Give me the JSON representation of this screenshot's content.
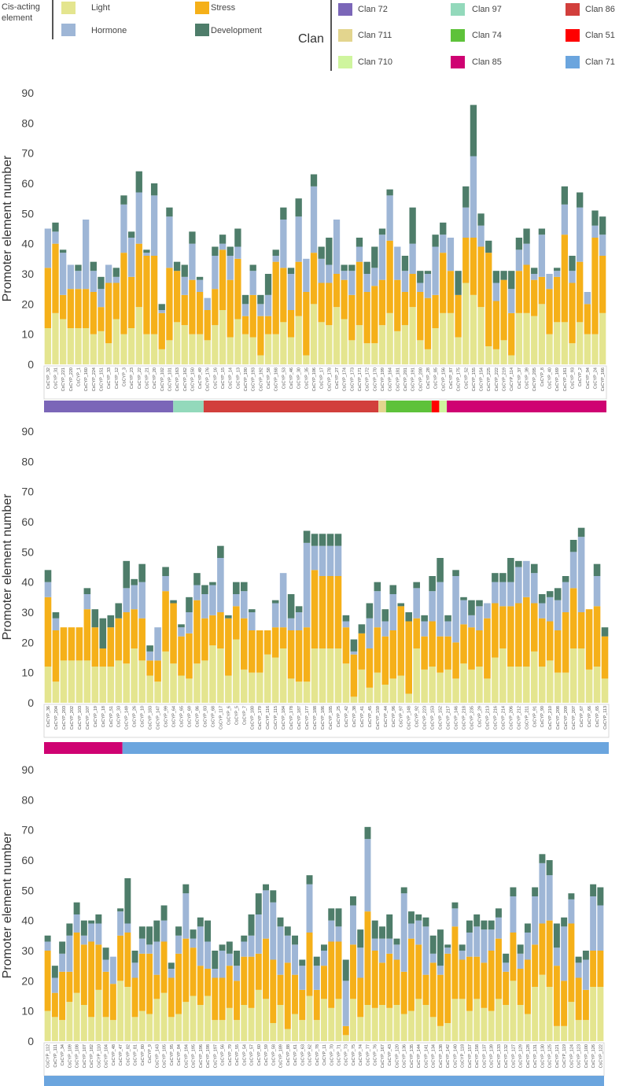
{
  "legend": {
    "cis_title_1": "Cis-acting",
    "cis_title_2": "element",
    "categories": [
      {
        "key": "light",
        "label": "Light",
        "color": "#E4E58F"
      },
      {
        "key": "stress",
        "label": "Stress",
        "color": "#F5B019"
      },
      {
        "key": "hormone",
        "label": "Hormone",
        "color": "#9EB6D6"
      },
      {
        "key": "development",
        "label": "Development",
        "color": "#4E7D6A"
      }
    ],
    "clan_title": "Clan",
    "clans": [
      {
        "label": "Clan 72",
        "color": "#7B66B8"
      },
      {
        "label": "Clan 97",
        "color": "#93D9BB"
      },
      {
        "label": "Clan 86",
        "color": "#D23F3C"
      },
      {
        "label": "Clan 711",
        "color": "#E3D58E"
      },
      {
        "label": "Clan 74",
        "color": "#5EC23A"
      },
      {
        "label": "Clan 51",
        "color": "#FF0000"
      },
      {
        "label": "Clan 710",
        "color": "#CFF59E"
      },
      {
        "label": "Clan 85",
        "color": "#CF0272"
      },
      {
        "label": "Clan 71",
        "color": "#6BA5DE"
      }
    ]
  },
  "chart_data": [
    {
      "type": "bar",
      "stacked": true,
      "ylabel": "Promoter element number",
      "ylim": [
        0,
        90
      ],
      "yticks": [
        0,
        10,
        20,
        30,
        40,
        50,
        60,
        70,
        80,
        90
      ],
      "series_names": [
        "Light",
        "Stress",
        "Hormone",
        "Development"
      ],
      "categories": [
        "CsCYP_32",
        "CsCYP_31",
        "CsCYP_221",
        "CsCYP_220",
        "CsCYP_1",
        "CsCYP_160",
        "CsCYP_224",
        "CsCYP_151",
        "CsCYP_33",
        "CsCYP_12",
        "CsCYP_3",
        "CsCYP_23",
        "CsCYP_22",
        "CsCYP_21",
        "CsCYP_20",
        "CsCYP_102",
        "CsCYP_101",
        "CsCYP_163",
        "CsCYP_162",
        "CsCYP_150",
        "CsCYP_49",
        "CsCYP_176",
        "CsCYP_16",
        "CsCYP_15",
        "CsCYP_14",
        "CsCYP_13",
        "CsCYP_190",
        "CsCYP_193",
        "CsCYP_192",
        "CsCYP_58",
        "CsCYP_168",
        "CsCYP_53",
        "CsCYP_46",
        "CsCYP_30",
        "CsCYP_35",
        "CsCYP_106",
        "CsCYP_17",
        "CsCYP_178",
        "CsCYP_27",
        "CsCYP_174",
        "CsCYP_173",
        "CsCYP_171",
        "CsCYP_172",
        "CsCYP_170",
        "CsCYP_199",
        "CsCYP_164",
        "CsCYP_181",
        "CsCYP_201",
        "CsCYP_191",
        "CsCYP_200",
        "CsCYP_28",
        "CsCYP_85",
        "CsCYP_156",
        "CsCYP_87",
        "CsCYP_175",
        "CsCYP_52",
        "CsCYP_155",
        "CsCYP_154",
        "CsCYP_225",
        "CsCYP_222",
        "CsCYP_219",
        "CsCYP_114",
        "CsCYP_37",
        "CsCYP_39",
        "CsCYP_205",
        "CsCYP_8",
        "CsCYP_40",
        "CsCYP_169",
        "CsCYP_161",
        "CsCYP_93",
        "CsCYP_2",
        "CsCYP_94",
        "CsCYP_24",
        "CsCYP_166"
      ],
      "light": [
        12,
        17,
        15,
        12,
        12,
        12,
        10,
        11,
        7,
        15,
        10,
        12,
        19,
        10,
        10,
        5,
        8,
        14,
        13,
        10,
        10,
        8,
        13,
        18,
        9,
        15,
        10,
        9,
        3,
        10,
        10,
        14,
        9,
        16,
        3,
        20,
        14,
        13,
        19,
        15,
        8,
        13,
        7,
        7,
        13,
        17,
        11,
        13,
        19,
        8,
        5,
        12,
        17,
        17,
        9,
        27,
        23,
        19,
        6,
        5,
        8,
        3,
        17,
        17,
        16,
        20,
        10,
        14,
        14,
        7,
        14,
        10,
        10,
        17
      ],
      "stress": [
        20,
        23,
        8,
        13,
        13,
        13,
        14,
        8,
        20,
        12,
        27,
        17,
        21,
        26,
        26,
        12,
        24,
        17,
        10,
        18,
        14,
        10,
        12,
        20,
        19,
        20,
        6,
        14,
        13,
        6,
        24,
        18,
        9,
        18,
        21,
        17,
        13,
        14,
        11,
        13,
        15,
        21,
        17,
        19,
        15,
        24,
        17,
        11,
        11,
        16,
        17,
        11,
        20,
        14,
        14,
        15,
        19,
        20,
        31,
        16,
        20,
        14,
        14,
        16,
        12,
        9,
        15,
        15,
        29,
        20,
        20,
        10,
        32,
        19
      ],
      "hormone": [
        13,
        4,
        14,
        8,
        6,
        23,
        7,
        6,
        6,
        2,
        16,
        13,
        17,
        1,
        20,
        1,
        17,
        0,
        6,
        12,
        4,
        4,
        11,
        2,
        8,
        4,
        4,
        8,
        4,
        7,
        2,
        16,
        12,
        15,
        11,
        22,
        8,
        6,
        18,
        3,
        8,
        5,
        6,
        6,
        15,
        15,
        11,
        7,
        10,
        3,
        8,
        16,
        6,
        11,
        0,
        10,
        27,
        7,
        0,
        6,
        0,
        8,
        7,
        7,
        2,
        14,
        5,
        2,
        10,
        4,
        18,
        4,
        4,
        7
      ],
      "development": [
        0,
        3,
        1,
        0,
        2,
        0,
        3,
        4,
        0,
        3,
        3,
        2,
        7,
        1,
        4,
        2,
        3,
        3,
        4,
        4,
        1,
        0,
        3,
        3,
        3,
        6,
        3,
        2,
        3,
        7,
        2,
        4,
        2,
        6,
        0,
        4,
        4,
        9,
        0,
        2,
        2,
        3,
        4,
        7,
        2,
        2,
        0,
        5,
        12,
        4,
        1,
        4,
        4,
        0,
        8,
        7,
        17,
        4,
        4,
        4,
        3,
        6,
        4,
        5,
        2,
        2,
        0,
        1,
        6,
        5,
        5,
        0,
        5,
        6
      ],
      "clan_bar": [
        {
          "clan": "Clan 72",
          "count": 17
        },
        {
          "clan": "Clan 97",
          "count": 4
        },
        {
          "clan": "Clan 86",
          "count": 23
        },
        {
          "clan": "Clan 711",
          "count": 1
        },
        {
          "clan": "Clan 74",
          "count": 6
        },
        {
          "clan": "Clan 51",
          "count": 1
        },
        {
          "clan": "Clan 710",
          "count": 1
        },
        {
          "clan": "Clan 85",
          "count": 21
        }
      ]
    },
    {
      "type": "bar",
      "stacked": true,
      "ylabel": "Promoter element number",
      "ylim": [
        0,
        90
      ],
      "yticks": [
        0,
        10,
        20,
        30,
        40,
        50,
        60,
        70,
        80,
        90
      ],
      "series_names": [
        "Light",
        "Stress",
        "Hormone",
        "Development"
      ],
      "categories": [
        "CsCYP_36",
        "CsCYP_204",
        "CsCYP_203",
        "CsCYP_202",
        "CsCYP_103",
        "CsCYP_107",
        "CsCYP_19",
        "CsCYP_18",
        "CsCYP_51",
        "CsCYP_33",
        "CsCYP_149",
        "CsCYP_26",
        "CsCYP_10",
        "CsCYP_183",
        "CsCYP_147",
        "CsCYP_99",
        "CsCYP_64",
        "CsCYP_65",
        "CsCYP_69",
        "CsCYP_86",
        "CsCYP_83",
        "CsCYP_68",
        "CsCYP_117",
        "CsCYP_6",
        "CsCYP_5",
        "CsCYP_7",
        "CsCYP_180",
        "CsCYP_179",
        "CsCYP_116",
        "CsCYP_115",
        "CsCYP_184",
        "CsCYP_178",
        "CsCYP_187",
        "CsCYP_177",
        "CsCYP_188",
        "CsCYP_186",
        "CsCYP_185",
        "CsCYP_25",
        "CsCYP_42",
        "CsCYP_38",
        "CsCYP_41",
        "CsCYP_45",
        "CsCYP_159",
        "CsCYP_44",
        "CsCYP_96",
        "CsCYP_97",
        "CsCYP_148",
        "CsCYP_92",
        "CsCYP_223",
        "CsCYP_153",
        "CsCYP_152",
        "CsCYP_217",
        "CsCYP_146",
        "CsCYP_218",
        "CsCYP_235",
        "CsCYP_29",
        "CsCYP_213",
        "CsCYP_216",
        "CsCYP_214",
        "CsCYP_206",
        "CsCYP_212",
        "CsCYP_211",
        "CsCYP_91",
        "CsCYP_90",
        "CsCYP_210",
        "CsCYP_208",
        "CsCYP_209",
        "CsCYP_207",
        "CsCYP_67",
        "CsCYP_66",
        "CsCYP_65",
        "CsCYP_113"
      ],
      "light": [
        12,
        7,
        14,
        14,
        14,
        14,
        12,
        12,
        12,
        14,
        13,
        18,
        14,
        9,
        7,
        17,
        13,
        9,
        8,
        13,
        14,
        19,
        18,
        9,
        21,
        11,
        10,
        10,
        16,
        15,
        18,
        8,
        7,
        7,
        18,
        18,
        18,
        18,
        13,
        2,
        11,
        5,
        10,
        6,
        8,
        9,
        3,
        18,
        11,
        12,
        10,
        11,
        8,
        13,
        11,
        12,
        8,
        15,
        18,
        12,
        12,
        12,
        17,
        12,
        14,
        10,
        10,
        18,
        18,
        11,
        12,
        8
      ],
      "stress": [
        23,
        17,
        11,
        11,
        11,
        17,
        13,
        6,
        13,
        14,
        17,
        13,
        14,
        5,
        7,
        20,
        20,
        13,
        15,
        21,
        14,
        10,
        12,
        19,
        11,
        17,
        14,
        14,
        8,
        10,
        7,
        16,
        17,
        18,
        26,
        24,
        24,
        24,
        12,
        14,
        12,
        13,
        15,
        16,
        16,
        23,
        24,
        10,
        11,
        15,
        12,
        11,
        12,
        13,
        14,
        12,
        20,
        18,
        14,
        20,
        21,
        23,
        16,
        16,
        13,
        14,
        20,
        20,
        12,
        20,
        20,
        14
      ],
      "hormone": [
        5,
        4,
        0,
        0,
        0,
        5,
        0,
        0,
        0,
        0,
        8,
        8,
        12,
        3,
        11,
        5,
        0,
        3,
        7,
        5,
        8,
        10,
        18,
        0,
        4,
        9,
        6,
        0,
        0,
        8,
        18,
        4,
        6,
        28,
        8,
        10,
        10,
        10,
        2,
        1,
        0,
        10,
        12,
        5,
        12,
        0,
        0,
        10,
        5,
        10,
        18,
        5,
        22,
        8,
        4,
        8,
        5,
        7,
        8,
        8,
        12,
        12,
        10,
        5,
        8,
        10,
        10,
        12,
        25,
        0,
        10,
        0
      ],
      "development": [
        4,
        2,
        0,
        0,
        0,
        2,
        6,
        10,
        4,
        5,
        9,
        2,
        6,
        2,
        0,
        3,
        1,
        1,
        5,
        4,
        3,
        1,
        4,
        1,
        4,
        3,
        1,
        0,
        0,
        1,
        0,
        8,
        2,
        4,
        4,
        4,
        4,
        4,
        2,
        4,
        3,
        5,
        3,
        4,
        3,
        1,
        3,
        2,
        2,
        5,
        8,
        2,
        2,
        1,
        5,
        2,
        0,
        3,
        3,
        8,
        2,
        0,
        3,
        3,
        2,
        4,
        2,
        4,
        3,
        0,
        4,
        3
      ],
      "clan_bar": [
        {
          "clan": "Clan 85",
          "count": 10
        },
        {
          "clan": "Clan 71",
          "count": 62
        }
      ]
    },
    {
      "type": "bar",
      "stacked": true,
      "ylabel": "Promoter element number",
      "ylim": [
        0,
        90
      ],
      "yticks": [
        0,
        10,
        20,
        30,
        40,
        50,
        60,
        70,
        80,
        90
      ],
      "series_names": [
        "Light",
        "Stress",
        "Hormone",
        "Development"
      ],
      "categories": [
        "CsCYP_112",
        "CsCYP_111",
        "CsCYP_34",
        "CsCYP_109",
        "CsCYP_108",
        "CsCYP_107",
        "CsCYP_182",
        "CsCYP_110",
        "CsCYP_104",
        "CsCYP_48",
        "CsCYP_47",
        "CsCYP_82",
        "CsCYP_81",
        "CsCYP_80",
        "CsCYP_9",
        "CsCYP_143",
        "CsCYP_105",
        "CsCYP_95",
        "CsCYP_84",
        "CsCYP_194",
        "CsCYP_195",
        "CsCYP_196",
        "CsCYP_198",
        "CsCYP_197",
        "CsCYP_56",
        "CsCYP_79",
        "CsCYP_55",
        "CsCYP_54",
        "CsCYP_57",
        "CsCYP_60",
        "CsCYP_59",
        "CsCYP_58",
        "CsCYP_189",
        "CsCYP_88",
        "CsCYP_61",
        "CsCYP_63",
        "CsCYP_62",
        "CsCYP_78",
        "CsCYP_11",
        "CsCYP_70",
        "CsCYP_71",
        "CsCYP_73",
        "CsCYP_75",
        "CsCYP_74",
        "CsCYP_77",
        "CsCYP_76",
        "CsCYP_167",
        "CsCYP_43",
        "CsCYP_120",
        "CsCYP_136",
        "CsCYP_135",
        "CsCYP_144",
        "CsCYP_141",
        "CsCYP_134",
        "CsCYP_138",
        "CsCYP_142",
        "CsCYP_140",
        "CsCYP_118",
        "CsCYP_157",
        "CsCYP_158",
        "CsCYP_137",
        "CsCYP_139",
        "CsCYP_133",
        "CsCYP_132",
        "CsCYP_127",
        "CsCYP_129",
        "CsCYP_128",
        "CsCYP_131",
        "CsCYP_130",
        "CsCYP_125",
        "CsCYP_121",
        "CsCYP_119",
        "CsCYP_124",
        "CsCYP_123",
        "CsCYP_100",
        "CsCYP_126",
        "CsCYP_122"
      ],
      "light": [
        10,
        8,
        7,
        13,
        16,
        12,
        8,
        17,
        8,
        7,
        20,
        18,
        8,
        10,
        9,
        14,
        16,
        8,
        9,
        13,
        15,
        12,
        15,
        7,
        7,
        11,
        7,
        12,
        11,
        17,
        14,
        6,
        12,
        4,
        9,
        7,
        15,
        7,
        14,
        11,
        14,
        2,
        14,
        8,
        12,
        11,
        12,
        11,
        12,
        9,
        10,
        14,
        12,
        8,
        5,
        6,
        14,
        14,
        10,
        14,
        11,
        10,
        14,
        12,
        20,
        12,
        9,
        18,
        22,
        18,
        5,
        5,
        13,
        7,
        7,
        18,
        18
      ],
      "stress": [
        20,
        8,
        16,
        10,
        20,
        20,
        25,
        15,
        15,
        12,
        15,
        18,
        13,
        19,
        20,
        8,
        17,
        13,
        20,
        21,
        16,
        13,
        9,
        14,
        14,
        14,
        13,
        16,
        17,
        12,
        20,
        21,
        10,
        22,
        13,
        10,
        21,
        10,
        11,
        22,
        19,
        3,
        18,
        13,
        31,
        19,
        14,
        18,
        15,
        14,
        24,
        18,
        10,
        18,
        17,
        23,
        24,
        13,
        18,
        14,
        15,
        20,
        20,
        11,
        16,
        12,
        18,
        14,
        17,
        22,
        20,
        15,
        26,
        14,
        10,
        12,
        12
      ],
      "hormone": [
        3,
        5,
        6,
        12,
        6,
        3,
        6,
        7,
        4,
        9,
        8,
        3,
        5,
        5,
        3,
        11,
        7,
        3,
        6,
        15,
        3,
        13,
        9,
        3,
        9,
        4,
        5,
        5,
        7,
        13,
        16,
        19,
        16,
        9,
        10,
        8,
        16,
        8,
        5,
        7,
        5,
        15,
        13,
        10,
        24,
        4,
        8,
        5,
        5,
        26,
        5,
        8,
        16,
        3,
        3,
        2,
        6,
        3,
        8,
        10,
        11,
        7,
        7,
        3,
        12,
        5,
        9,
        16,
        20,
        15,
        6,
        18,
        8,
        5,
        10,
        18,
        15
      ],
      "development": [
        2,
        4,
        4,
        4,
        4,
        5,
        1,
        3,
        4,
        0,
        1,
        15,
        4,
        4,
        6,
        7,
        5,
        2,
        3,
        3,
        3,
        3,
        7,
        6,
        2,
        4,
        5,
        2,
        7,
        7,
        2,
        4,
        3,
        3,
        3,
        2,
        3,
        3,
        2,
        4,
        6,
        7,
        3,
        6,
        4,
        6,
        4,
        8,
        2,
        2,
        4,
        2,
        3,
        6,
        12,
        1,
        2,
        2,
        4,
        4,
        3,
        3,
        3,
        3,
        3,
        3,
        3,
        3,
        3,
        5,
        8,
        3,
        2,
        2,
        3,
        4,
        6
      ],
      "clan_bar": [
        {
          "clan": "Clan 71",
          "count": 77
        }
      ]
    }
  ]
}
